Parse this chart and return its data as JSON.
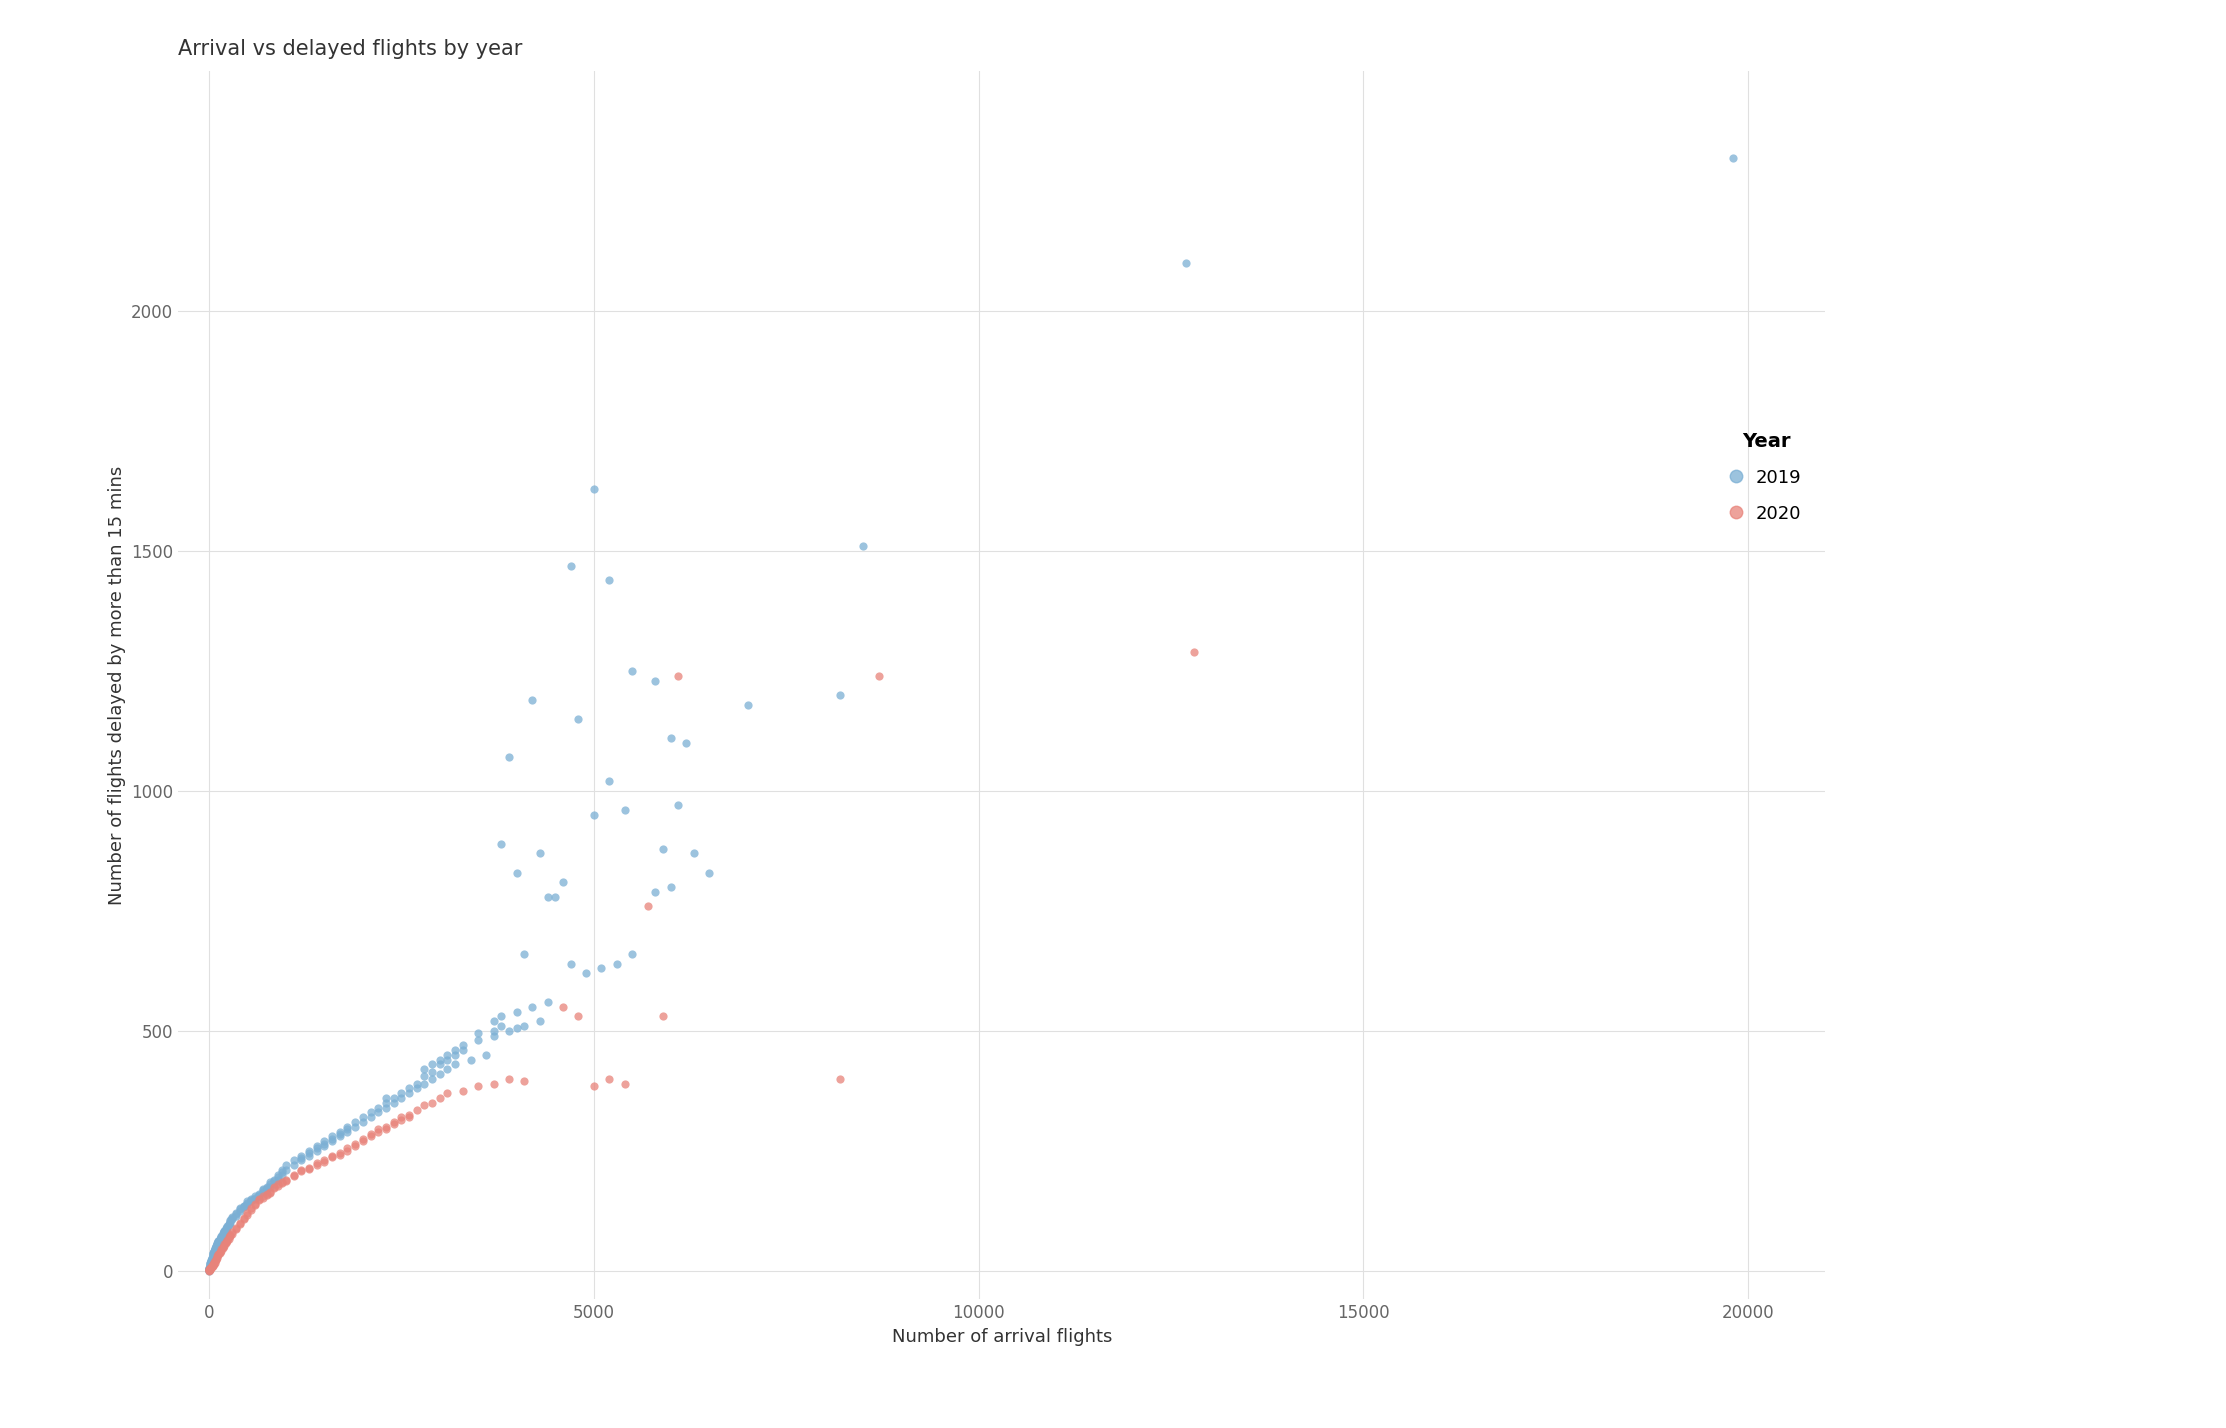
{
  "title": "Arrival vs delayed flights by year",
  "xlabel": "Number of arrival flights",
  "ylabel": "Number of flights delayed by more than 15 mins",
  "color_2019": "#7bafd4",
  "color_2020": "#e8837a",
  "xlim": [
    -400,
    21000
  ],
  "ylim": [
    -60,
    2500
  ],
  "xticks": [
    0,
    5000,
    10000,
    15000,
    20000
  ],
  "yticks": [
    0,
    500,
    1000,
    1500,
    2000
  ],
  "legend_title": "Year",
  "background_color": "#ffffff",
  "grid_color": "#e0e0e0",
  "title_fontsize": 15,
  "label_fontsize": 13,
  "tick_fontsize": 12,
  "marker_size": 35,
  "alpha": 0.75,
  "seed": 42,
  "points_2019": [
    [
      19800,
      2320
    ],
    [
      12700,
      2100
    ],
    [
      8500,
      1510
    ],
    [
      5000,
      1630
    ],
    [
      4700,
      1470
    ],
    [
      5200,
      1440
    ],
    [
      5500,
      1250
    ],
    [
      5800,
      1230
    ],
    [
      4800,
      1150
    ],
    [
      4200,
      1190
    ],
    [
      6000,
      1110
    ],
    [
      6200,
      1100
    ],
    [
      7000,
      1180
    ],
    [
      8200,
      1200
    ],
    [
      3900,
      1070
    ],
    [
      5000,
      950
    ],
    [
      5200,
      1020
    ],
    [
      5400,
      960
    ],
    [
      6100,
      970
    ],
    [
      5900,
      880
    ],
    [
      6300,
      870
    ],
    [
      6500,
      830
    ],
    [
      6000,
      800
    ],
    [
      5800,
      790
    ],
    [
      4600,
      810
    ],
    [
      4400,
      780
    ],
    [
      4000,
      830
    ],
    [
      3800,
      890
    ],
    [
      4300,
      870
    ],
    [
      4500,
      780
    ],
    [
      4100,
      660
    ],
    [
      4700,
      640
    ],
    [
      5100,
      630
    ],
    [
      4900,
      620
    ],
    [
      5300,
      640
    ],
    [
      5500,
      660
    ],
    [
      3700,
      490
    ],
    [
      3900,
      500
    ],
    [
      4100,
      510
    ],
    [
      4300,
      520
    ],
    [
      3500,
      480
    ],
    [
      3300,
      460
    ],
    [
      3600,
      450
    ],
    [
      3400,
      440
    ],
    [
      3200,
      430
    ],
    [
      3100,
      420
    ],
    [
      3000,
      410
    ],
    [
      2900,
      400
    ],
    [
      2800,
      390
    ],
    [
      2700,
      380
    ],
    [
      2600,
      370
    ],
    [
      2500,
      360
    ],
    [
      2400,
      350
    ],
    [
      2300,
      340
    ],
    [
      2200,
      330
    ],
    [
      2100,
      320
    ],
    [
      2000,
      310
    ],
    [
      1900,
      300
    ],
    [
      1800,
      290
    ],
    [
      1700,
      280
    ],
    [
      1600,
      270
    ],
    [
      1500,
      260
    ],
    [
      1400,
      250
    ],
    [
      1300,
      240
    ],
    [
      1200,
      230
    ],
    [
      1100,
      220
    ],
    [
      1000,
      210
    ],
    [
      950,
      200
    ],
    [
      900,
      190
    ],
    [
      850,
      180
    ],
    [
      800,
      175
    ],
    [
      750,
      170
    ],
    [
      700,
      165
    ],
    [
      650,
      155
    ],
    [
      600,
      150
    ],
    [
      550,
      145
    ],
    [
      500,
      140
    ],
    [
      450,
      135
    ],
    [
      400,
      125
    ],
    [
      350,
      115
    ],
    [
      300,
      108
    ],
    [
      280,
      100
    ],
    [
      260,
      95
    ],
    [
      240,
      90
    ],
    [
      220,
      85
    ],
    [
      200,
      80
    ],
    [
      180,
      75
    ],
    [
      160,
      70
    ],
    [
      140,
      65
    ],
    [
      120,
      60
    ],
    [
      100,
      55
    ],
    [
      90,
      50
    ],
    [
      80,
      45
    ],
    [
      70,
      40
    ],
    [
      60,
      35
    ],
    [
      50,
      30
    ],
    [
      40,
      25
    ],
    [
      30,
      20
    ],
    [
      20,
      15
    ],
    [
      10,
      10
    ],
    [
      5,
      5
    ],
    [
      3,
      3
    ],
    [
      2,
      2
    ],
    [
      1,
      1
    ],
    [
      3700,
      520
    ],
    [
      3800,
      530
    ],
    [
      4000,
      540
    ],
    [
      4200,
      550
    ],
    [
      4400,
      560
    ],
    [
      2800,
      420
    ],
    [
      2900,
      430
    ],
    [
      3000,
      440
    ],
    [
      3100,
      450
    ],
    [
      3200,
      460
    ],
    [
      1900,
      310
    ],
    [
      2000,
      320
    ],
    [
      2100,
      330
    ],
    [
      2200,
      340
    ],
    [
      2300,
      350
    ],
    [
      1600,
      280
    ],
    [
      1700,
      290
    ],
    [
      1800,
      300
    ],
    [
      1400,
      260
    ],
    [
      1500,
      270
    ],
    [
      1200,
      240
    ],
    [
      1300,
      250
    ],
    [
      1000,
      220
    ],
    [
      1100,
      230
    ],
    [
      900,
      200
    ],
    [
      950,
      210
    ],
    [
      800,
      185
    ],
    [
      850,
      190
    ],
    [
      700,
      170
    ],
    [
      750,
      175
    ],
    [
      600,
      155
    ],
    [
      650,
      160
    ],
    [
      500,
      145
    ],
    [
      550,
      150
    ],
    [
      400,
      130
    ],
    [
      450,
      135
    ],
    [
      350,
      120
    ],
    [
      300,
      112
    ],
    [
      280,
      105
    ],
    [
      260,
      98
    ],
    [
      240,
      92
    ],
    [
      220,
      88
    ],
    [
      200,
      82
    ],
    [
      180,
      78
    ],
    [
      160,
      72
    ],
    [
      140,
      67
    ],
    [
      120,
      62
    ],
    [
      100,
      57
    ],
    [
      90,
      52
    ],
    [
      80,
      47
    ],
    [
      70,
      42
    ],
    [
      60,
      37
    ],
    [
      50,
      32
    ],
    [
      40,
      27
    ],
    [
      30,
      22
    ],
    [
      20,
      17
    ],
    [
      15,
      12
    ],
    [
      10,
      8
    ],
    [
      5,
      4
    ],
    [
      3,
      2
    ],
    [
      2,
      1
    ],
    [
      1,
      0
    ],
    [
      2600,
      380
    ],
    [
      2700,
      390
    ],
    [
      2500,
      370
    ],
    [
      2400,
      360
    ],
    [
      2300,
      360
    ],
    [
      1600,
      275
    ],
    [
      1700,
      285
    ],
    [
      1800,
      295
    ],
    [
      1400,
      255
    ],
    [
      1500,
      265
    ],
    [
      1200,
      235
    ],
    [
      1300,
      245
    ],
    [
      3700,
      500
    ],
    [
      3800,
      510
    ],
    [
      4000,
      505
    ],
    [
      3500,
      495
    ],
    [
      3300,
      470
    ],
    [
      3200,
      450
    ],
    [
      3100,
      440
    ],
    [
      3000,
      430
    ],
    [
      2800,
      405
    ],
    [
      2900,
      415
    ],
    [
      900,
      195
    ],
    [
      950,
      205
    ],
    [
      800,
      180
    ],
    [
      850,
      186
    ],
    [
      700,
      168
    ],
    [
      750,
      172
    ],
    [
      600,
      152
    ],
    [
      650,
      158
    ],
    [
      500,
      142
    ],
    [
      550,
      148
    ],
    [
      400,
      128
    ],
    [
      450,
      133
    ],
    [
      350,
      118
    ],
    [
      300,
      110
    ],
    [
      280,
      103
    ],
    [
      260,
      97
    ],
    [
      240,
      93
    ],
    [
      220,
      87
    ],
    [
      200,
      83
    ],
    [
      180,
      77
    ],
    [
      160,
      71
    ],
    [
      140,
      66
    ],
    [
      120,
      61
    ],
    [
      100,
      56
    ],
    [
      90,
      51
    ],
    [
      80,
      46
    ],
    [
      70,
      41
    ],
    [
      60,
      36
    ],
    [
      50,
      31
    ],
    [
      40,
      26
    ],
    [
      30,
      21
    ],
    [
      20,
      16
    ],
    [
      10,
      9
    ],
    [
      8,
      6
    ],
    [
      4,
      3
    ],
    [
      2,
      1
    ]
  ],
  "points_2020": [
    [
      12800,
      1290
    ],
    [
      8700,
      1240
    ],
    [
      6100,
      1240
    ],
    [
      5700,
      760
    ],
    [
      5900,
      530
    ],
    [
      8200,
      400
    ],
    [
      4600,
      550
    ],
    [
      4800,
      530
    ],
    [
      5000,
      385
    ],
    [
      5200,
      400
    ],
    [
      5400,
      390
    ],
    [
      3700,
      390
    ],
    [
      3900,
      400
    ],
    [
      4100,
      395
    ],
    [
      3500,
      385
    ],
    [
      3300,
      375
    ],
    [
      3100,
      370
    ],
    [
      3000,
      360
    ],
    [
      2900,
      350
    ],
    [
      2800,
      345
    ],
    [
      2700,
      335
    ],
    [
      2600,
      325
    ],
    [
      2500,
      320
    ],
    [
      2400,
      310
    ],
    [
      2300,
      300
    ],
    [
      2200,
      295
    ],
    [
      2100,
      285
    ],
    [
      2000,
      275
    ],
    [
      1900,
      265
    ],
    [
      1800,
      255
    ],
    [
      1700,
      245
    ],
    [
      1600,
      240
    ],
    [
      1500,
      230
    ],
    [
      1400,
      225
    ],
    [
      1300,
      215
    ],
    [
      1200,
      210
    ],
    [
      1100,
      200
    ],
    [
      1000,
      190
    ],
    [
      950,
      185
    ],
    [
      900,
      180
    ],
    [
      850,
      175
    ],
    [
      800,
      165
    ],
    [
      750,
      160
    ],
    [
      700,
      155
    ],
    [
      650,
      150
    ],
    [
      600,
      140
    ],
    [
      550,
      130
    ],
    [
      500,
      120
    ],
    [
      450,
      110
    ],
    [
      400,
      100
    ],
    [
      350,
      90
    ],
    [
      300,
      80
    ],
    [
      280,
      75
    ],
    [
      260,
      70
    ],
    [
      240,
      65
    ],
    [
      220,
      60
    ],
    [
      200,
      55
    ],
    [
      180,
      50
    ],
    [
      160,
      45
    ],
    [
      140,
      40
    ],
    [
      120,
      35
    ],
    [
      100,
      30
    ],
    [
      90,
      25
    ],
    [
      80,
      20
    ],
    [
      70,
      18
    ],
    [
      60,
      15
    ],
    [
      50,
      12
    ],
    [
      40,
      10
    ],
    [
      30,
      8
    ],
    [
      20,
      6
    ],
    [
      10,
      4
    ],
    [
      5,
      3
    ],
    [
      3,
      2
    ],
    [
      2,
      1
    ],
    [
      1,
      0
    ],
    [
      2600,
      320
    ],
    [
      2500,
      315
    ],
    [
      2400,
      305
    ],
    [
      2300,
      295
    ],
    [
      2200,
      290
    ],
    [
      2100,
      280
    ],
    [
      2000,
      270
    ],
    [
      1900,
      260
    ],
    [
      1800,
      250
    ],
    [
      1700,
      242
    ],
    [
      1600,
      237
    ],
    [
      1500,
      227
    ],
    [
      1400,
      220
    ],
    [
      1300,
      212
    ],
    [
      1200,
      207
    ],
    [
      1100,
      197
    ],
    [
      1000,
      187
    ],
    [
      950,
      182
    ],
    [
      900,
      177
    ],
    [
      850,
      172
    ],
    [
      800,
      162
    ],
    [
      750,
      157
    ],
    [
      700,
      152
    ],
    [
      650,
      147
    ],
    [
      600,
      137
    ],
    [
      550,
      127
    ],
    [
      500,
      117
    ],
    [
      450,
      107
    ],
    [
      400,
      97
    ],
    [
      350,
      87
    ],
    [
      300,
      77
    ],
    [
      280,
      72
    ],
    [
      260,
      67
    ],
    [
      240,
      62
    ],
    [
      220,
      57
    ],
    [
      200,
      52
    ],
    [
      180,
      47
    ],
    [
      160,
      42
    ],
    [
      140,
      37
    ],
    [
      120,
      32
    ],
    [
      100,
      27
    ],
    [
      90,
      22
    ],
    [
      80,
      17
    ],
    [
      70,
      15
    ],
    [
      60,
      12
    ],
    [
      50,
      10
    ],
    [
      40,
      8
    ],
    [
      30,
      6
    ],
    [
      20,
      4
    ],
    [
      10,
      2
    ],
    [
      5,
      1
    ]
  ]
}
